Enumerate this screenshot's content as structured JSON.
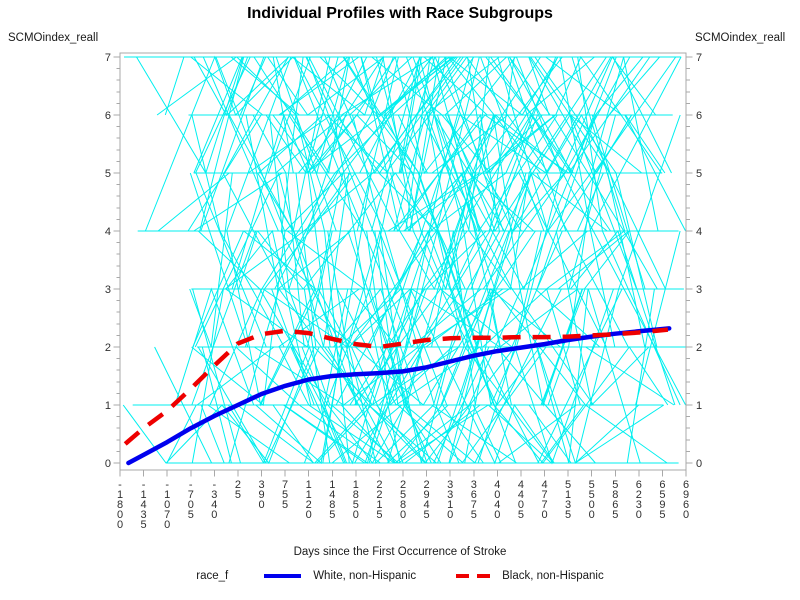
{
  "title": "Individual Profiles with Race Subgroups",
  "y_axis_left_label": "SCMOindex_reall",
  "y_axis_right_label": "SCMOindex_reall",
  "x_axis_label": "Days since the First Occurrence of Stroke",
  "legend": {
    "title": "race_f",
    "position": "bottom",
    "entries": [
      {
        "label": "White, non-Hispanic",
        "color": "#0000EE",
        "style": "solid"
      },
      {
        "label": "Black, non-Hispanic",
        "color": "#EE0000",
        "style": "dashed"
      }
    ]
  },
  "colors": {
    "profile_cyan": "#00EFEF",
    "mean_white_blue": "#0000EE",
    "mean_black_red": "#EE0000",
    "axis_line": "#A9A9A9",
    "tick_text": "#303030",
    "background": "#FFFFFF"
  },
  "chart_data": {
    "type": "line",
    "subtype": "spaghetti individual profiles with group mean smooth curves",
    "title": "Individual Profiles with Race Subgroups",
    "xlabel": "Days since the First Occurrence of Stroke",
    "ylabel_left": "SCMOindex_reall",
    "ylabel_right": "SCMOindex_reall",
    "xlim": [
      -1800,
      6960
    ],
    "ylim": [
      0,
      7
    ],
    "grid": false,
    "x_tick_values": [
      -1800,
      -1435,
      -1070,
      -705,
      -340,
      25,
      390,
      755,
      1120,
      1485,
      1850,
      2215,
      2580,
      2945,
      3310,
      3675,
      4040,
      4405,
      4770,
      5135,
      5500,
      5865,
      6230,
      6595,
      6960
    ],
    "x_tick_labels": [
      "-1800",
      "-1435",
      "-1070",
      "-705",
      "-340",
      "25",
      "390",
      "755",
      "1120",
      "1485",
      "1850",
      "2215",
      "2580",
      "2945",
      "3310",
      "3675",
      "4040",
      "4405",
      "4770",
      "5135",
      "5500",
      "5865",
      "6230",
      "6595",
      "6960"
    ],
    "y_tick_values": [
      0,
      1,
      2,
      3,
      4,
      5,
      6,
      7
    ],
    "y_tick_labels": [
      "0",
      "1",
      "2",
      "3",
      "4",
      "5",
      "6",
      "7"
    ],
    "y_minor_tick_step": 0.2,
    "series": [
      {
        "name": "White, non-Hispanic",
        "color": "#0000EE",
        "style": "solid",
        "dash": null,
        "x": [
          -1670,
          -1435,
          -1070,
          -705,
          -340,
          25,
          390,
          755,
          1120,
          1485,
          1850,
          2215,
          2580,
          2945,
          3310,
          3675,
          4040,
          4405,
          4770,
          5135,
          5500,
          5865,
          6230,
          6500,
          6700
        ],
        "y": [
          0,
          0.14,
          0.36,
          0.6,
          0.81,
          1.0,
          1.19,
          1.33,
          1.44,
          1.5,
          1.53,
          1.55,
          1.58,
          1.65,
          1.75,
          1.85,
          1.93,
          1.99,
          2.05,
          2.12,
          2.18,
          2.23,
          2.27,
          2.3,
          2.32
        ]
      },
      {
        "name": "Black, non-Hispanic",
        "color": "#EE0000",
        "style": "dashed",
        "dash": "18 12",
        "x": [
          -1720,
          -1435,
          -1070,
          -705,
          -340,
          25,
          390,
          755,
          1120,
          1485,
          1850,
          2215,
          2580,
          2945,
          3310,
          3675,
          4040,
          4405,
          4770,
          5135,
          5500,
          5865,
          6230,
          6500,
          6680
        ],
        "y": [
          0.33,
          0.6,
          0.9,
          1.28,
          1.68,
          2.06,
          2.22,
          2.28,
          2.24,
          2.14,
          2.05,
          2.0,
          2.06,
          2.12,
          2.15,
          2.16,
          2.16,
          2.17,
          2.17,
          2.18,
          2.2,
          2.22,
          2.25,
          2.28,
          2.3
        ]
      }
    ],
    "individual_profiles": {
      "description": "Cyan spaghetti lines: one polyline per subject, SCMO index measured at visit times; values are integers 0-7",
      "color": "#00EFEF",
      "value_range": [
        0,
        7
      ],
      "count": 215,
      "seed": 7
    }
  }
}
